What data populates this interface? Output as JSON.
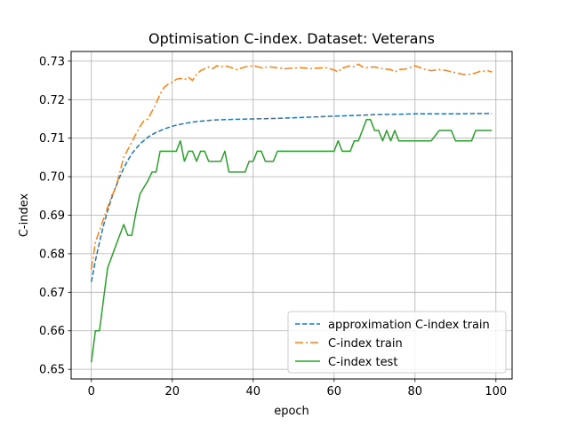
{
  "chart_data": {
    "type": "line",
    "title": "Optimisation C-index. Dataset: Veterans",
    "xlabel": "epoch",
    "ylabel": "C-index",
    "xlim": [
      -5,
      104
    ],
    "ylim": [
      0.6475,
      0.7325
    ],
    "xticks": [
      0,
      20,
      40,
      60,
      80,
      100
    ],
    "yticks": [
      0.65,
      0.66,
      0.67,
      0.68,
      0.69,
      0.7,
      0.71,
      0.72,
      0.73
    ],
    "ytick_labels": [
      "0.65",
      "0.66",
      "0.67",
      "0.68",
      "0.69",
      "0.70",
      "0.71",
      "0.72",
      "0.73"
    ],
    "grid": true,
    "legend_position": "lower-right",
    "series": [
      {
        "name": "approximation C-index train",
        "color": "#1f77b4",
        "style": "dashed",
        "x": [
          0,
          1,
          2,
          3,
          4,
          5,
          6,
          7,
          8,
          9,
          10,
          12,
          14,
          16,
          18,
          20,
          22,
          24,
          26,
          28,
          30,
          33,
          36,
          40,
          45,
          50,
          55,
          60,
          65,
          70,
          75,
          80,
          85,
          90,
          95,
          99
        ],
        "y": [
          0.6727,
          0.6782,
          0.683,
          0.6873,
          0.6911,
          0.6944,
          0.6973,
          0.6999,
          0.7022,
          0.7042,
          0.706,
          0.7085,
          0.7103,
          0.7115,
          0.7124,
          0.7131,
          0.7136,
          0.714,
          0.7143,
          0.7145,
          0.7147,
          0.7148,
          0.7149,
          0.715,
          0.7151,
          0.7153,
          0.7155,
          0.7157,
          0.7159,
          0.7161,
          0.7162,
          0.7163,
          0.7163,
          0.7163,
          0.7164,
          0.7164
        ]
      },
      {
        "name": "C-index train",
        "color": "#ff7f0e",
        "style": "dashdot",
        "x": [
          0,
          1,
          2,
          3,
          4,
          5,
          6,
          7,
          8,
          9,
          10,
          11,
          12,
          13,
          14,
          15,
          16,
          17,
          18,
          19,
          20,
          21,
          22,
          23,
          24,
          25,
          26,
          27,
          28,
          29,
          30,
          31,
          32,
          33,
          34,
          35,
          36,
          38,
          40,
          42,
          44,
          46,
          48,
          50,
          52,
          54,
          56,
          58,
          60,
          61,
          62,
          64,
          65,
          66,
          67,
          68,
          70,
          72,
          74,
          75,
          76,
          78,
          80,
          82,
          84,
          86,
          88,
          90,
          92,
          94,
          96,
          98,
          99
        ],
        "y": [
          0.676,
          0.683,
          0.686,
          0.689,
          0.692,
          0.695,
          0.697,
          0.701,
          0.705,
          0.707,
          0.709,
          0.711,
          0.713,
          0.7145,
          0.715,
          0.717,
          0.719,
          0.7215,
          0.7232,
          0.724,
          0.7245,
          0.7253,
          0.7255,
          0.7252,
          0.7258,
          0.725,
          0.7265,
          0.7275,
          0.728,
          0.7285,
          0.728,
          0.7288,
          0.7285,
          0.7288,
          0.7285,
          0.7282,
          0.7278,
          0.7285,
          0.7288,
          0.7283,
          0.7285,
          0.7283,
          0.728,
          0.7282,
          0.7283,
          0.728,
          0.7282,
          0.7283,
          0.7277,
          0.7272,
          0.7282,
          0.7288,
          0.7285,
          0.7292,
          0.7285,
          0.7283,
          0.7285,
          0.728,
          0.7278,
          0.7272,
          0.7278,
          0.728,
          0.7288,
          0.728,
          0.7275,
          0.7278,
          0.7275,
          0.727,
          0.7265,
          0.7266,
          0.7273,
          0.7275,
          0.7272
        ]
      },
      {
        "name": "C-index test",
        "color": "#2ca02c",
        "style": "solid",
        "x": [
          0,
          1,
          2,
          4,
          6,
          8,
          9,
          10,
          11,
          12,
          14,
          15,
          16,
          17,
          18,
          20,
          21,
          22,
          23,
          24,
          25,
          26,
          27,
          28,
          29,
          30,
          32,
          33,
          34,
          37,
          38,
          39,
          40,
          41,
          42,
          43,
          44,
          45,
          46,
          50,
          55,
          60,
          61,
          62,
          64,
          65,
          66,
          67,
          68,
          69,
          70,
          71,
          72,
          73,
          74,
          75,
          76,
          77,
          80,
          82,
          84,
          86,
          88,
          89,
          90,
          92,
          94,
          95,
          99
        ],
        "y": [
          0.6518,
          0.66,
          0.66,
          0.6763,
          0.682,
          0.6876,
          0.6848,
          0.6848,
          0.6905,
          0.6955,
          0.699,
          0.7012,
          0.7012,
          0.7066,
          0.7066,
          0.7066,
          0.7066,
          0.7093,
          0.704,
          0.7066,
          0.7066,
          0.704,
          0.7066,
          0.7066,
          0.704,
          0.704,
          0.704,
          0.7066,
          0.7012,
          0.7012,
          0.7012,
          0.704,
          0.704,
          0.7066,
          0.7066,
          0.704,
          0.704,
          0.704,
          0.7066,
          0.7066,
          0.7066,
          0.7066,
          0.7093,
          0.7066,
          0.7066,
          0.7093,
          0.7093,
          0.712,
          0.7148,
          0.7148,
          0.712,
          0.712,
          0.7093,
          0.712,
          0.7093,
          0.712,
          0.7093,
          0.7093,
          0.7093,
          0.7093,
          0.7093,
          0.712,
          0.712,
          0.712,
          0.7093,
          0.7093,
          0.7093,
          0.712,
          0.712
        ]
      }
    ]
  }
}
